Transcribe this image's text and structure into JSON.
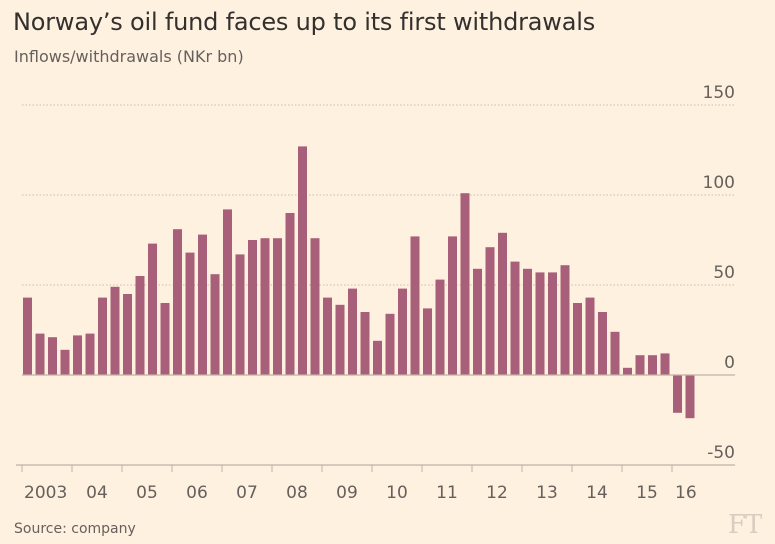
{
  "header": {
    "title": "Norway’s oil fund faces up to its first withdrawals",
    "subtitle": "Inflows/withdrawals (NKr bn)"
  },
  "footer": {
    "source": "Source: company",
    "logo": "FT"
  },
  "colors": {
    "background": "#fff1e0",
    "bar": "#a85f7a",
    "grid": "#c9bdb0",
    "axis": "#bfb3a6",
    "text": "#66605c"
  },
  "chart_data": {
    "type": "bar",
    "title": "Norway’s oil fund faces up to its first withdrawals",
    "subtitle": "Inflows/withdrawals (NKr bn)",
    "xlabel": "",
    "ylabel": "Inflows/withdrawals (NKr bn)",
    "frequency": "quarterly",
    "start": "2003 Q1",
    "end": "2016 Q2",
    "ylim": [
      -50,
      150
    ],
    "yticks": [
      150,
      100,
      50,
      0,
      -50
    ],
    "ytick_labels": [
      "150",
      "100",
      "50",
      "0",
      "-50"
    ],
    "y_axis_position": "right",
    "grid": "horizontal dotted",
    "x_tick_labels": [
      "2003",
      "04",
      "05",
      "06",
      "07",
      "08",
      "09",
      "10",
      "11",
      "12",
      "13",
      "14",
      "15",
      "16"
    ],
    "categories": [
      "2003 Q1",
      "2003 Q2",
      "2003 Q3",
      "2003 Q4",
      "2004 Q1",
      "2004 Q2",
      "2004 Q3",
      "2004 Q4",
      "2005 Q1",
      "2005 Q2",
      "2005 Q3",
      "2005 Q4",
      "2006 Q1",
      "2006 Q2",
      "2006 Q3",
      "2006 Q4",
      "2007 Q1",
      "2007 Q2",
      "2007 Q3",
      "2007 Q4",
      "2008 Q1",
      "2008 Q2",
      "2008 Q3",
      "2008 Q4",
      "2009 Q1",
      "2009 Q2",
      "2009 Q3",
      "2009 Q4",
      "2010 Q1",
      "2010 Q2",
      "2010 Q3",
      "2010 Q4",
      "2011 Q1",
      "2011 Q2",
      "2011 Q3",
      "2011 Q4",
      "2012 Q1",
      "2012 Q2",
      "2012 Q3",
      "2012 Q4",
      "2013 Q1",
      "2013 Q2",
      "2013 Q3",
      "2013 Q4",
      "2014 Q1",
      "2014 Q2",
      "2014 Q3",
      "2014 Q4",
      "2015 Q1",
      "2015 Q2",
      "2015 Q3",
      "2015 Q4",
      "2016 Q1",
      "2016 Q2"
    ],
    "values": [
      43,
      23,
      21,
      14,
      22,
      23,
      43,
      49,
      45,
      55,
      73,
      40,
      81,
      68,
      78,
      56,
      92,
      67,
      75,
      76,
      76,
      90,
      127,
      76,
      43,
      39,
      48,
      35,
      19,
      34,
      48,
      77,
      37,
      53,
      77,
      101,
      59,
      71,
      79,
      63,
      59,
      57,
      57,
      61,
      40,
      43,
      35,
      24,
      4,
      11,
      11,
      12,
      -21,
      -24
    ]
  }
}
